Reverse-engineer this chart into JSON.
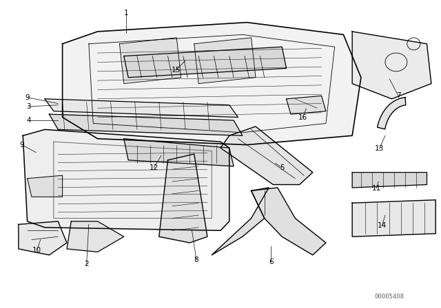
{
  "bg_color": "#ffffff",
  "fig_width": 6.4,
  "fig_height": 4.48,
  "dpi": 100,
  "watermark": "00005408",
  "lc": "#000000",
  "lw": 0.8
}
